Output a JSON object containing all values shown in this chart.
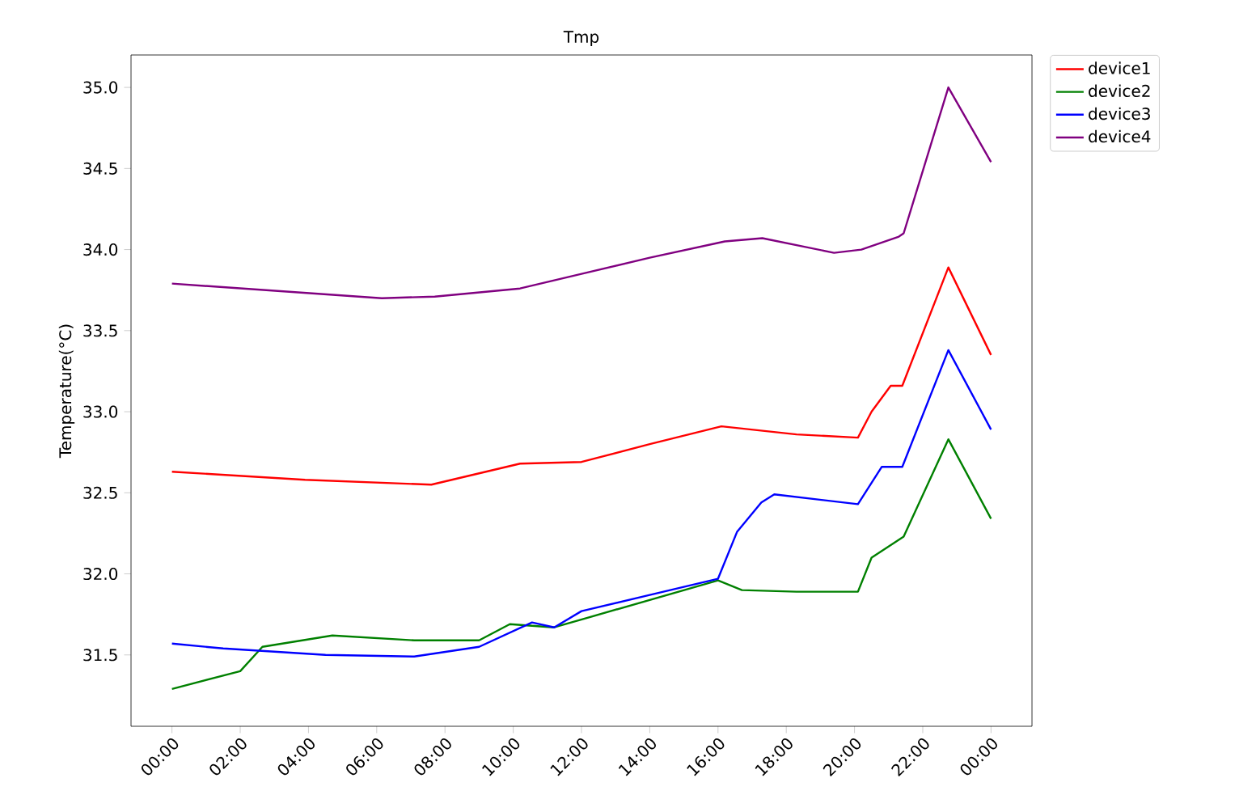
{
  "chart_data": {
    "type": "line",
    "title": "Tmp",
    "ylabel": "Temperature(°C)",
    "xlim": [
      -1.2,
      25.2
    ],
    "ylim": [
      31.06,
      35.2
    ],
    "xticks": [
      {
        "value": 0,
        "label": "00:00"
      },
      {
        "value": 2,
        "label": "02:00"
      },
      {
        "value": 4,
        "label": "04:00"
      },
      {
        "value": 6,
        "label": "06:00"
      },
      {
        "value": 8,
        "label": "08:00"
      },
      {
        "value": 10,
        "label": "10:00"
      },
      {
        "value": 12,
        "label": "12:00"
      },
      {
        "value": 14,
        "label": "14:00"
      },
      {
        "value": 16,
        "label": "16:00"
      },
      {
        "value": 18,
        "label": "18:00"
      },
      {
        "value": 20,
        "label": "20:00"
      },
      {
        "value": 22,
        "label": "22:00"
      },
      {
        "value": 24,
        "label": "00:00"
      }
    ],
    "yticks": [
      {
        "value": 31.5,
        "label": "31.5"
      },
      {
        "value": 32.0,
        "label": "32.0"
      },
      {
        "value": 32.5,
        "label": "32.5"
      },
      {
        "value": 33.0,
        "label": "33.0"
      },
      {
        "value": 33.5,
        "label": "33.5"
      },
      {
        "value": 34.0,
        "label": "34.0"
      },
      {
        "value": 34.5,
        "label": "34.5"
      },
      {
        "value": 35.0,
        "label": "35.0"
      }
    ],
    "legend": "top right",
    "marker": "none",
    "line_style": "solid",
    "series": [
      {
        "name": "device1",
        "color": "#ff0000",
        "x": [
          0,
          3.9,
          7.6,
          10.2,
          12,
          14,
          16.1,
          18.3,
          20.1,
          20.5,
          21.06,
          21.4,
          22.75,
          24
        ],
        "values": [
          32.63,
          32.58,
          32.55,
          32.68,
          32.69,
          32.8,
          32.91,
          32.86,
          32.84,
          33.0,
          33.16,
          33.16,
          33.89,
          33.35
        ]
      },
      {
        "name": "device2",
        "color": "#008000",
        "x": [
          0,
          2.0,
          2.65,
          4.7,
          7.1,
          9.0,
          9.9,
          11.2,
          12,
          14,
          16.0,
          16.7,
          18.3,
          20.1,
          20.5,
          21.44,
          22.75,
          24
        ],
        "values": [
          31.29,
          31.4,
          31.55,
          31.62,
          31.59,
          31.59,
          31.69,
          31.67,
          null,
          null,
          31.96,
          31.9,
          31.89,
          31.89,
          32.1,
          32.23,
          32.83,
          32.34
        ]
      },
      {
        "name": "device3",
        "color": "#0000ff",
        "x": [
          0,
          1.5,
          4.5,
          7.1,
          9.0,
          10.55,
          11.2,
          12,
          14,
          16.0,
          16.56,
          17.27,
          17.65,
          20.1,
          20.8,
          21.4,
          22.75,
          24
        ],
        "values": [
          31.57,
          31.54,
          31.5,
          31.49,
          31.55,
          31.7,
          31.67,
          31.77,
          31.87,
          31.97,
          32.26,
          32.44,
          32.49,
          32.43,
          32.66,
          32.66,
          33.38,
          32.89
        ]
      },
      {
        "name": "device4",
        "color": "#800080",
        "x": [
          0,
          6.15,
          7.7,
          10.2,
          12,
          14,
          16.2,
          17.3,
          19.4,
          20.2,
          21.3,
          21.44,
          22.75,
          24
        ],
        "values": [
          33.79,
          33.7,
          33.71,
          33.76,
          33.85,
          33.95,
          34.05,
          34.07,
          33.98,
          34.0,
          34.08,
          34.1,
          35.0,
          34.54
        ]
      }
    ]
  }
}
